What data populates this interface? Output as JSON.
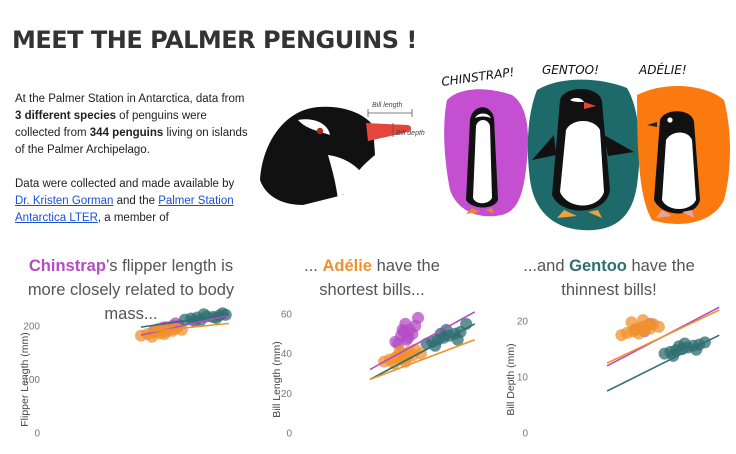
{
  "page": {
    "title": "MEET THE PALMER PENGUINS !"
  },
  "intro": {
    "p1_a": "At the Palmer Station in Antarctica, data from",
    "p1_b": "3 different species",
    "p1_c": " of penguins were collected from ",
    "p1_d": "344 penguins",
    "p1_e": " living on islands of the Palmer Archipelago.",
    "p2_a": "Data were collected and made available by ",
    "p2_link1": "Dr. Kristen Gorman",
    "p2_b": " and the ",
    "p2_link2": "Palmer Station Antarctica LTER",
    "p2_c": ", a member of"
  },
  "illustration": {
    "bill_length": "Bill length",
    "bill_depth": "Bill depth",
    "chinstrap": "CHINSTRAP!",
    "gentoo": "GENTOO!",
    "adelie": "ADÉLIE!"
  },
  "colors": {
    "chinstrap": "#b44cc4",
    "gentoo": "#2f6e72",
    "adelie": "#f0922c",
    "adelie_bg": "#fb7a0f",
    "gentoo_bg": "#1e6a6a",
    "chinstrap_bg": "#c44fd0"
  },
  "captions": {
    "c1": {
      "species": "Chinstrap",
      "rest1": "’s flipper length is",
      "rest2": "more closely related to body",
      "rest3": "mass..."
    },
    "c2": {
      "pre": "... ",
      "species": "Adélie",
      "rest1": " have the",
      "rest2": "shortest bills..."
    },
    "c3": {
      "pre": "...and ",
      "species": "Gentoo",
      "rest1": " have the",
      "rest2": "thinnest bills!"
    }
  },
  "chart_data": [
    {
      "type": "scatter",
      "ylabel": "Flipper Length (mm)",
      "yticks": [
        "0",
        "100",
        "200"
      ],
      "ylim": [
        0,
        230
      ],
      "xlim": [
        0,
        6500
      ],
      "series": [
        {
          "name": "Chinstrap",
          "color": "#b44cc4",
          "points": [
            [
              3300,
              190
            ],
            [
              3500,
              193
            ],
            [
              3650,
              195
            ],
            [
              3800,
              196
            ],
            [
              3700,
              198
            ],
            [
              3900,
              200
            ],
            [
              4100,
              201
            ],
            [
              3400,
              192
            ],
            [
              3600,
              197
            ],
            [
              4000,
              205
            ],
            [
              3750,
              193
            ]
          ],
          "trend": [
            [
              2900,
              183
            ],
            [
              5700,
              220
            ]
          ]
        },
        {
          "name": "Adélie",
          "color": "#f0922c",
          "points": [
            [
              2900,
              182
            ],
            [
              3100,
              185
            ],
            [
              3300,
              188
            ],
            [
              3400,
              190
            ],
            [
              3500,
              186
            ],
            [
              3600,
              192
            ],
            [
              3700,
              190
            ],
            [
              3800,
              194
            ],
            [
              3900,
              191
            ],
            [
              4000,
              195
            ],
            [
              4200,
              193
            ],
            [
              3250,
              180
            ],
            [
              3450,
              195
            ],
            [
              3650,
              185
            ]
          ],
          "trend": [
            [
              2900,
              188
            ],
            [
              5700,
              205
            ]
          ]
        },
        {
          "name": "Gentoo",
          "color": "#2f6e72",
          "points": [
            [
              4300,
              212
            ],
            [
              4500,
              214
            ],
            [
              4700,
              216
            ],
            [
              4800,
              211
            ],
            [
              5000,
              218
            ],
            [
              5200,
              217
            ],
            [
              5400,
              220
            ],
            [
              5600,
              221
            ],
            [
              4600,
              210
            ],
            [
              4900,
              222
            ],
            [
              5300,
              215
            ],
            [
              5500,
              224
            ]
          ],
          "trend": [
            [
              2900,
              198
            ],
            [
              5700,
              222
            ]
          ]
        }
      ]
    },
    {
      "type": "scatter",
      "ylabel": "Bill Length (mm)",
      "yticks": [
        "0",
        "20",
        "40",
        "60"
      ],
      "ylim": [
        0,
        62
      ],
      "xlim": [
        0,
        6500
      ],
      "series": [
        {
          "name": "Chinstrap",
          "color": "#b44cc4",
          "points": [
            [
              3300,
              46
            ],
            [
              3500,
              49
            ],
            [
              3600,
              51
            ],
            [
              3700,
              47
            ],
            [
              3800,
              52
            ],
            [
              3900,
              50
            ],
            [
              4000,
              54
            ],
            [
              3400,
              45
            ],
            [
              3650,
              55
            ],
            [
              3750,
              48
            ],
            [
              4100,
              58
            ],
            [
              3550,
              52
            ]
          ],
          "trend": [
            [
              2400,
              32
            ],
            [
              6100,
              61
            ]
          ]
        },
        {
          "name": "Gentoo",
          "color": "#2f6e72",
          "points": [
            [
              4400,
              45
            ],
            [
              4600,
              46
            ],
            [
              4800,
              47
            ],
            [
              5000,
              48
            ],
            [
              5200,
              49
            ],
            [
              5400,
              50
            ],
            [
              5600,
              51
            ],
            [
              4700,
              44
            ],
            [
              5100,
              52
            ],
            [
              5800,
              55
            ],
            [
              5500,
              47
            ],
            [
              4900,
              50
            ]
          ],
          "trend": [
            [
              2400,
              27
            ],
            [
              6100,
              55
            ]
          ]
        },
        {
          "name": "Adélie",
          "color": "#f0922c",
          "points": [
            [
              2900,
              36
            ],
            [
              3100,
              37
            ],
            [
              3300,
              38
            ],
            [
              3400,
              39
            ],
            [
              3500,
              37
            ],
            [
              3600,
              40
            ],
            [
              3700,
              38
            ],
            [
              3800,
              41
            ],
            [
              3900,
              39
            ],
            [
              4000,
              42
            ],
            [
              4200,
              40
            ],
            [
              3250,
              35
            ],
            [
              3450,
              41
            ],
            [
              3650,
              36
            ]
          ],
          "trend": [
            [
              2400,
              27
            ],
            [
              6100,
              47
            ]
          ]
        }
      ]
    },
    {
      "type": "scatter",
      "ylabel": "Bill Depth (mm)",
      "yticks": [
        "0",
        "10",
        "20"
      ],
      "ylim": [
        0,
        22
      ],
      "xlim": [
        0,
        6500
      ],
      "series": [
        {
          "name": "Chinstrap",
          "color": "#b44cc4",
          "points": [
            [
              3400,
              18.5
            ],
            [
              3600,
              18.9
            ],
            [
              3800,
              19.2
            ],
            [
              3700,
              18.2
            ],
            [
              3900,
              19.5
            ]
          ],
          "trend": [
            [
              2400,
              12.0
            ],
            [
              6300,
              22.5
            ]
          ]
        },
        {
          "name": "Adélie",
          "color": "#f0922c",
          "points": [
            [
              2900,
              17.5
            ],
            [
              3100,
              17.9
            ],
            [
              3300,
              18.2
            ],
            [
              3400,
              18.6
            ],
            [
              3500,
              17.8
            ],
            [
              3600,
              18.9
            ],
            [
              3700,
              18.4
            ],
            [
              3800,
              19.2
            ],
            [
              3900,
              18.7
            ],
            [
              4000,
              19.5
            ],
            [
              4200,
              19.0
            ],
            [
              3250,
              19.8
            ],
            [
              3650,
              20.2
            ]
          ],
          "trend": [
            [
              2400,
              12.5
            ],
            [
              6300,
              22.0
            ]
          ]
        },
        {
          "name": "Gentoo",
          "color": "#2f6e72",
          "points": [
            [
              4400,
              14.2
            ],
            [
              4600,
              14.5
            ],
            [
              4800,
              14.8
            ],
            [
              5000,
              15.0
            ],
            [
              5200,
              15.3
            ],
            [
              5400,
              15.6
            ],
            [
              5600,
              15.8
            ],
            [
              4700,
              13.8
            ],
            [
              5100,
              16.0
            ],
            [
              5800,
              16.2
            ],
            [
              5500,
              14.9
            ],
            [
              4900,
              15.5
            ]
          ],
          "trend": [
            [
              2400,
              7.5
            ],
            [
              6300,
              17.5
            ]
          ]
        }
      ]
    }
  ]
}
